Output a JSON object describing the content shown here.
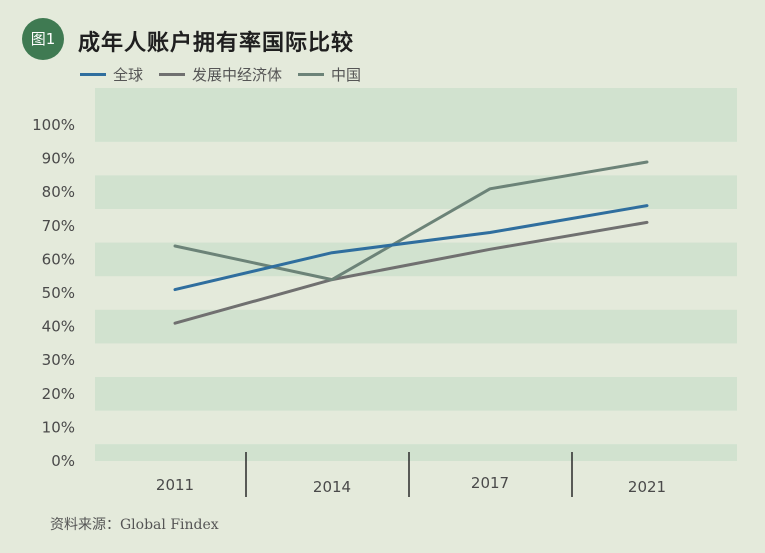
{
  "header": {
    "figure_label": "图1",
    "title": "成年人账户拥有率国际比较"
  },
  "source": "资料来源：Global Findex",
  "colors": {
    "background": "#e4eadb",
    "band": "#d1e2cf",
    "badge": "#3f7a52",
    "global": "#2f6e9e",
    "developing": "#707070",
    "china": "#6c8378"
  },
  "chart_data": {
    "type": "line",
    "title": "成年人账户拥有率国际比较",
    "categories": [
      "2011",
      "2014",
      "2017",
      "2021"
    ],
    "y_ticks": [
      "0%",
      "10%",
      "20%",
      "30%",
      "40%",
      "50%",
      "60%",
      "70%",
      "80%",
      "90%",
      "100%"
    ],
    "ylim": [
      0,
      100
    ],
    "grid": true,
    "legend_position": "top-left",
    "series": [
      {
        "name": "全球",
        "values": [
          51,
          62,
          68,
          76
        ],
        "color": "#2f6e9e"
      },
      {
        "name": "发展中经济体",
        "values": [
          41,
          54,
          63,
          71
        ],
        "color": "#707070"
      },
      {
        "name": "中国",
        "values": [
          64,
          54,
          81,
          89
        ],
        "color": "#6c8378"
      }
    ]
  }
}
